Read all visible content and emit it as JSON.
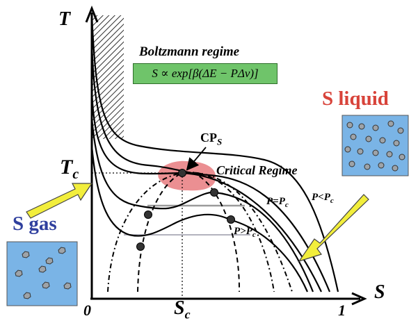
{
  "axes": {
    "y_label": "T",
    "x_label": "S",
    "x_tick_min": "0",
    "x_tick_max": "1",
    "x_tick_mid": "S",
    "x_tick_mid_sub": "c",
    "y_tick_label": "T",
    "y_tick_sub": "c"
  },
  "regimes": {
    "boltzmann_title": "Boltzmann regime",
    "formula": "S ∝ exp[β(ΔE − PΔv)]",
    "critical_regime": "Critical Regime",
    "critical_point": "CP",
    "critical_point_sub": "S"
  },
  "isobars": {
    "p_equal": "P=P",
    "p_equal_sub": "c",
    "p_less": "P<P",
    "p_less_sub": "c",
    "p_greater": "P>P",
    "p_greater_sub": "c"
  },
  "phases": {
    "liquid_label": "S liquid",
    "gas_label": "S gas"
  },
  "colors": {
    "box_fill": "#7ab4e6",
    "molecule_fill": "#9ea3a8",
    "arrow_fill": "#f2ee3c",
    "critical_fill": "#e46a6e",
    "formula_fill": "#6fc46a",
    "liquid_text": "#d8433a",
    "gas_text": "#2f3f9e"
  }
}
